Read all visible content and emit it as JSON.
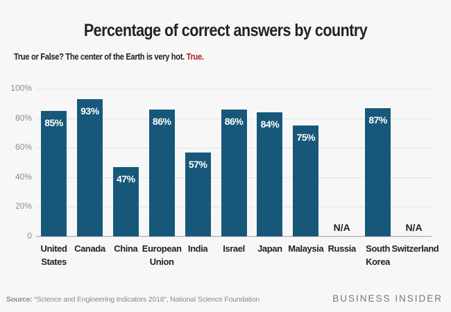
{
  "chart_data": {
    "type": "bar",
    "title": "Percentage of correct answers by country",
    "subtitle": "True or False? The center of the Earth is very hot.",
    "subtitle_answer": "True.",
    "categories": [
      "United States",
      "Canada",
      "China",
      "European Union",
      "India",
      "Israel",
      "Japan",
      "Malaysia",
      "Russia",
      "South Korea",
      "Switzerland"
    ],
    "category_lines": [
      [
        "United",
        "States"
      ],
      [
        "Canada"
      ],
      [
        "China"
      ],
      [
        "European",
        "Union"
      ],
      [
        "India"
      ],
      [
        "Israel"
      ],
      [
        "Japan"
      ],
      [
        "Malaysia"
      ],
      [
        "Russia"
      ],
      [
        "South",
        "Korea"
      ],
      [
        "Switzerland"
      ]
    ],
    "values": [
      85,
      93,
      47,
      86,
      57,
      86,
      84,
      75,
      null,
      87,
      null
    ],
    "value_labels": [
      "85%",
      "93%",
      "47%",
      "86%",
      "57%",
      "86%",
      "84%",
      "75%",
      "N/A",
      "87%",
      "N/A"
    ],
    "xlabel": "",
    "ylabel": "",
    "ylim": [
      0,
      100
    ],
    "yticks": [
      0,
      20,
      40,
      60,
      80,
      100
    ],
    "ytick_labels": [
      "0",
      "20%",
      "40%",
      "60%",
      "80%",
      "100%"
    ],
    "grid": true,
    "legend": null,
    "bar_color": "#17587a"
  },
  "source_label": "Source:",
  "source_text": " “Science and Engineering Indicators 2018”, National Science Foundation",
  "brand": "BUSINESS INSIDER"
}
